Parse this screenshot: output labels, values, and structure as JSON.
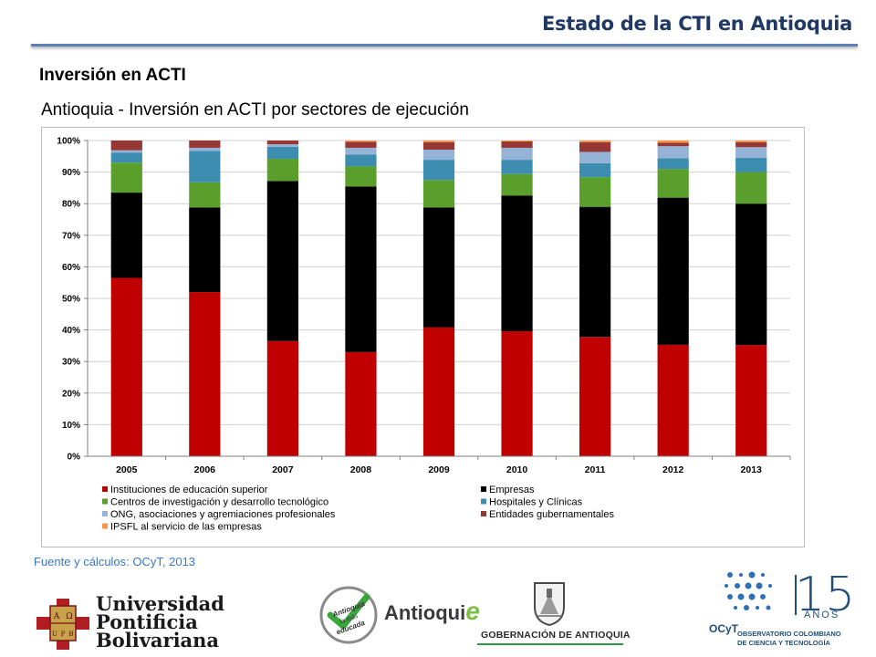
{
  "header": {
    "title": "Estado de la CTI en Antioquia"
  },
  "section": {
    "title": "Inversión en ACTI"
  },
  "source": "Fuente y cálculos: OCyT, 2013",
  "chart_data": {
    "type": "bar",
    "stacked": true,
    "title": "Antioquia - Inversión en ACTI por sectores de ejecución",
    "xlabel": "",
    "ylabel": "",
    "ylim": [
      0,
      100
    ],
    "ytick_step": 10,
    "ytick_suffix": "%",
    "grid": true,
    "legend_position": "bottom",
    "categories": [
      "2005",
      "2006",
      "2007",
      "2008",
      "2009",
      "2010",
      "2011",
      "2012",
      "2013"
    ],
    "series": [
      {
        "name": "Instituciones de educación superior",
        "color": "#c00000",
        "values": [
          56.5,
          52.0,
          36.5,
          33.0,
          40.8,
          39.6,
          37.8,
          35.3,
          35.2
        ]
      },
      {
        "name": "Empresas",
        "color": "#000000",
        "values": [
          27.0,
          26.8,
          50.7,
          52.4,
          38.0,
          43.0,
          41.2,
          46.6,
          44.8
        ]
      },
      {
        "name": "Centros de investigación y desarrollo tecnológico",
        "color": "#5a9e2c",
        "values": [
          9.5,
          8.0,
          7.0,
          6.4,
          8.7,
          6.8,
          9.4,
          9.1,
          10.0
        ]
      },
      {
        "name": "Hospitales y Clínicas",
        "color": "#3c8db0",
        "values": [
          3.2,
          9.9,
          3.8,
          3.8,
          6.4,
          4.5,
          4.4,
          3.4,
          4.5
        ]
      },
      {
        "name": "ONG, asociaciones y agremiaciones profesionales",
        "color": "#95b3d7",
        "values": [
          0.7,
          1.0,
          0.8,
          2.1,
          3.2,
          3.8,
          3.6,
          3.8,
          3.4
        ]
      },
      {
        "name": "Entidades gubernamentales",
        "color": "#953735",
        "values": [
          3.1,
          2.3,
          1.2,
          1.9,
          2.4,
          2.0,
          3.1,
          1.1,
          1.6
        ]
      },
      {
        "name": "IPSFL al servicio de las empresas",
        "color": "#f79646",
        "values": [
          0.0,
          0.0,
          0.0,
          0.4,
          0.5,
          0.3,
          0.5,
          0.7,
          0.5
        ]
      }
    ]
  },
  "logos": {
    "upb": {
      "shield_letters": [
        "A",
        "Ω",
        "U",
        "P",
        "B"
      ],
      "lines": [
        "Universidad",
        "Pontificia",
        "Bolivariana"
      ]
    },
    "antioquia_educada": {
      "badge_text": [
        "Antioquia",
        "la más",
        "educada"
      ],
      "word": "Antioqui",
      "accent": "e"
    },
    "gobernacion": {
      "text": "GOBERNACIÓN DE ANTIOQUIA"
    },
    "ocyt": {
      "number": "15",
      "anos": "AÑOS",
      "name": "OCyT",
      "sub_lines": [
        "OBSERVATORIO COLOMBIANO",
        "DE CIENCIA Y TECNOLOGÍA"
      ]
    }
  }
}
